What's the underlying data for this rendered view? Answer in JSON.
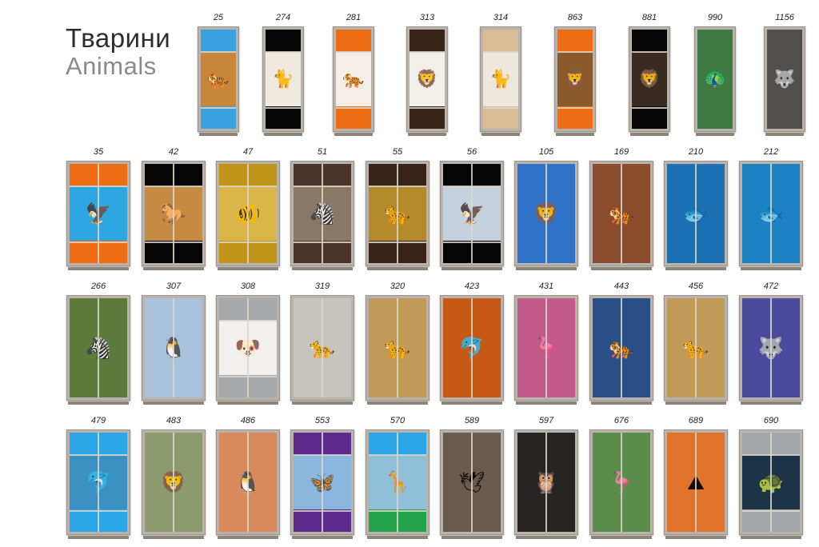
{
  "title": {
    "ua": "Тварини",
    "en": "Animals"
  },
  "rows": [
    {
      "items": [
        {
          "code": "25",
          "top": "#3aa0e0",
          "img": "#c9863a",
          "bottom": "#3aa0e0",
          "icon": "tiger-icon"
        },
        {
          "code": "274",
          "top": "#050505",
          "img": "#efe9df",
          "bottom": "#050505",
          "icon": "kittens-icon"
        },
        {
          "code": "281",
          "top": "#ee6c14",
          "img": "#f3eee8",
          "bottom": "#ee6c14",
          "icon": "tiger-icon"
        },
        {
          "code": "313",
          "top": "#3a2418",
          "img": "#f2eee9",
          "bottom": "#3a2418",
          "icon": "lion-icon"
        },
        {
          "code": "314",
          "top": "#d8bd94",
          "img": "#eee7de",
          "bottom": "#d8bd94",
          "icon": "cat-icon"
        },
        {
          "code": "863",
          "top": "#ee6c14",
          "img": "#8a5a2b",
          "bottom": "#ee6c14",
          "icon": "lions-icon"
        },
        {
          "code": "881",
          "top": "#050505",
          "img": "#3b2a20",
          "bottom": "#050505",
          "icon": "lion-icon"
        },
        {
          "code": "990",
          "top": "",
          "img": "#3f7a45",
          "bottom": "",
          "icon": "peacock-icon"
        },
        {
          "code": "1156",
          "top": "",
          "img": "#52504c",
          "bottom": "",
          "icon": "wolf-icon"
        }
      ]
    },
    {
      "items": [
        {
          "code": "35",
          "top": "#ee6c14",
          "img": "#2da6e2",
          "bottom": "#ee6c14",
          "icon": "birds-icon"
        },
        {
          "code": "42",
          "top": "#050505",
          "img": "#c58b43",
          "bottom": "#050505",
          "icon": "horse-icon"
        },
        {
          "code": "47",
          "top": "#bf9418",
          "img": "#d9b54a",
          "bottom": "#bf9418",
          "icon": "clownfish-icon"
        },
        {
          "code": "51",
          "top": "#4a3528",
          "img": "#8a7866",
          "bottom": "#4a3528",
          "icon": "zebra-icon"
        },
        {
          "code": "55",
          "top": "#3a2418",
          "img": "#b58a2a",
          "bottom": "#3a2418",
          "icon": "leopard-icon"
        },
        {
          "code": "56",
          "top": "#050505",
          "img": "#c4d2df",
          "bottom": "#050505",
          "icon": "eagle-icon"
        },
        {
          "code": "105",
          "top": "",
          "img": "#2f73c9",
          "bottom": "",
          "icon": "lion-icon"
        },
        {
          "code": "169",
          "top": "",
          "img": "#8a4c2c",
          "bottom": "",
          "icon": "tiger-icon"
        },
        {
          "code": "210",
          "top": "",
          "img": "#1b6fb3",
          "bottom": "",
          "icon": "reef-icon"
        },
        {
          "code": "212",
          "top": "",
          "img": "#1d82c4",
          "bottom": "",
          "icon": "reef-icon"
        }
      ]
    },
    {
      "items": [
        {
          "code": "266",
          "top": "",
          "img": "#5c7a3a",
          "bottom": "",
          "icon": "zebra-icon"
        },
        {
          "code": "307",
          "top": "",
          "img": "#a9c3dd",
          "bottom": "",
          "icon": "penguins-icon"
        },
        {
          "code": "308",
          "top": "#a7a8a9",
          "img": "#f1f0ee",
          "bottom": "#a7a8a9",
          "icon": "puppy-icon"
        },
        {
          "code": "319",
          "top": "",
          "img": "#c7c3bf",
          "bottom": "",
          "icon": "snow-leopard-icon"
        },
        {
          "code": "320",
          "top": "",
          "img": "#c29a57",
          "bottom": "",
          "icon": "leopard-icon"
        },
        {
          "code": "423",
          "top": "",
          "img": "#c65a14",
          "bottom": "",
          "icon": "dolphins-icon"
        },
        {
          "code": "431",
          "top": "",
          "img": "#c25a8a",
          "bottom": "",
          "icon": "flamingo-icon"
        },
        {
          "code": "443",
          "top": "",
          "img": "#2a4f86",
          "bottom": "",
          "icon": "white-tiger-icon"
        },
        {
          "code": "456",
          "top": "",
          "img": "#c29a57",
          "bottom": "",
          "icon": "leopard-icon"
        },
        {
          "code": "472",
          "top": "",
          "img": "#4c4a9c",
          "bottom": "",
          "icon": "wolf-icon"
        }
      ]
    },
    {
      "items": [
        {
          "code": "479",
          "top": "#2aa6e6",
          "img": "#3b91c2",
          "bottom": "#2aa6e6",
          "icon": "dolphin-icon"
        },
        {
          "code": "483",
          "top": "",
          "img": "#8c9a6e",
          "bottom": "",
          "icon": "lion-icon"
        },
        {
          "code": "486",
          "top": "",
          "img": "#d98a5c",
          "bottom": "",
          "icon": "penguin-icon"
        },
        {
          "code": "553",
          "top": "#5b2a8c",
          "img": "#8bb6de",
          "bottom": "#5b2a8c",
          "icon": "butterfly-icon"
        },
        {
          "code": "570",
          "top": "#2aa6e6",
          "img": "#8fc0d8",
          "bottom": "#23a44a",
          "icon": "giraffe-icon"
        },
        {
          "code": "589",
          "top": "",
          "img": "#6a5a4c",
          "bottom": "",
          "icon": "seagulls-icon"
        },
        {
          "code": "597",
          "top": "",
          "img": "#262524",
          "bottom": "",
          "icon": "owl-icon"
        },
        {
          "code": "676",
          "top": "",
          "img": "#5a8c4a",
          "bottom": "",
          "icon": "flamingo-icon"
        },
        {
          "code": "689",
          "top": "",
          "img": "#e0742a",
          "bottom": "",
          "icon": "mountain-icon"
        },
        {
          "code": "690",
          "top": "#a4a7aa",
          "img": "#1d3347",
          "bottom": "#a4a7aa",
          "icon": "turtle-icon"
        }
      ]
    }
  ]
}
